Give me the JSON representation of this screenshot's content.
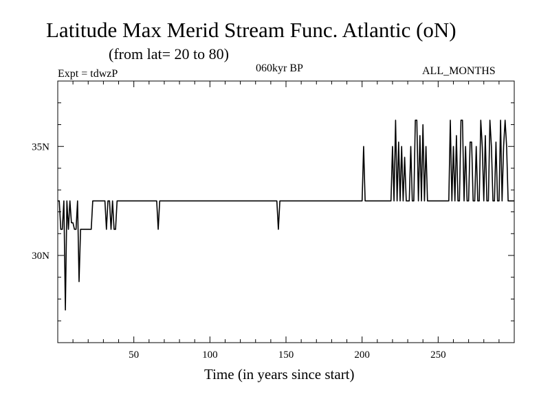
{
  "header": {
    "title": "Latitude Max Merid Stream Func. Atlantic (oN)",
    "subtitle": "(from lat= 20 to 80)",
    "experiment": "Expt = tdwzP",
    "period": "060kyr BP",
    "months": "ALL_MONTHS"
  },
  "chart_data": {
    "type": "line",
    "title": "Latitude Max Merid Stream Func. Atlantic (oN)",
    "subtitle": "(from lat= 20 to 80)",
    "xlabel": "Time (in years since start)",
    "ylabel": "",
    "xlim": [
      0,
      300
    ],
    "ylim": [
      26,
      38
    ],
    "x_ticks": [
      50,
      100,
      150,
      200,
      250
    ],
    "y_ticks": [
      {
        "value": 30,
        "label": "30N"
      },
      {
        "value": 35,
        "label": "35N"
      }
    ],
    "grid": false,
    "series": [
      {
        "points": [
          [
            0,
            32.5
          ],
          [
            1,
            32.5
          ],
          [
            2,
            31.2
          ],
          [
            3,
            31.2
          ],
          [
            4,
            32.5
          ],
          [
            5,
            27.5
          ],
          [
            6,
            32.5
          ],
          [
            7,
            31.2
          ],
          [
            8,
            32.5
          ],
          [
            9,
            31.5
          ],
          [
            10,
            31.5
          ],
          [
            11,
            31.2
          ],
          [
            12,
            31.2
          ],
          [
            13,
            32.5
          ],
          [
            14,
            28.8
          ],
          [
            15,
            31.2
          ],
          [
            16,
            31.2
          ],
          [
            20,
            31.2
          ],
          [
            22,
            31.2
          ],
          [
            23,
            32.5
          ],
          [
            30,
            32.5
          ],
          [
            31,
            32.5
          ],
          [
            32,
            31.2
          ],
          [
            33,
            32.5
          ],
          [
            34,
            32.5
          ],
          [
            35,
            31.2
          ],
          [
            36,
            32.5
          ],
          [
            37,
            31.2
          ],
          [
            38,
            31.2
          ],
          [
            39,
            32.5
          ],
          [
            65,
            32.5
          ],
          [
            66,
            31.2
          ],
          [
            67,
            32.5
          ],
          [
            144,
            32.5
          ],
          [
            145,
            31.2
          ],
          [
            146,
            32.5
          ],
          [
            200,
            32.5
          ],
          [
            201,
            35
          ],
          [
            202,
            32.5
          ],
          [
            219,
            32.5
          ],
          [
            220,
            35
          ],
          [
            221,
            32.5
          ],
          [
            222,
            36.2
          ],
          [
            223,
            32.5
          ],
          [
            224,
            35.2
          ],
          [
            225,
            32.5
          ],
          [
            226,
            35
          ],
          [
            227,
            32.5
          ],
          [
            228,
            34.5
          ],
          [
            229,
            32.5
          ],
          [
            231,
            32.5
          ],
          [
            232,
            35
          ],
          [
            233,
            32.5
          ],
          [
            234,
            32.5
          ],
          [
            235,
            36.2
          ],
          [
            236,
            36.2
          ],
          [
            237,
            32.5
          ],
          [
            238,
            35.5
          ],
          [
            239,
            32.5
          ],
          [
            240,
            36
          ],
          [
            241,
            32.5
          ],
          [
            242,
            35
          ],
          [
            243,
            32.5
          ],
          [
            257,
            32.5
          ],
          [
            258,
            36.2
          ],
          [
            259,
            32.5
          ],
          [
            260,
            35
          ],
          [
            261,
            32.5
          ],
          [
            262,
            35.5
          ],
          [
            263,
            32.5
          ],
          [
            264,
            32.5
          ],
          [
            265,
            36.2
          ],
          [
            266,
            36.2
          ],
          [
            267,
            32.5
          ],
          [
            268,
            35
          ],
          [
            269,
            32.5
          ],
          [
            270,
            32.5
          ],
          [
            271,
            35.2
          ],
          [
            272,
            35.2
          ],
          [
            273,
            32.5
          ],
          [
            274,
            32.5
          ],
          [
            275,
            35
          ],
          [
            276,
            32.5
          ],
          [
            277,
            32.5
          ],
          [
            278,
            36.2
          ],
          [
            279,
            35
          ],
          [
            280,
            32.5
          ],
          [
            281,
            35.5
          ],
          [
            282,
            32.5
          ],
          [
            283,
            32.5
          ],
          [
            284,
            36.2
          ],
          [
            285,
            35
          ],
          [
            286,
            32.5
          ],
          [
            287,
            32.5
          ],
          [
            288,
            35.2
          ],
          [
            289,
            32.5
          ],
          [
            290,
            32.5
          ],
          [
            291,
            36.2
          ],
          [
            292,
            32.5
          ],
          [
            293,
            35
          ],
          [
            294,
            36.2
          ],
          [
            295,
            35
          ],
          [
            296,
            32.5
          ],
          [
            297,
            32.5
          ],
          [
            298,
            32.5
          ],
          [
            299,
            32.5
          ],
          [
            300,
            32.5
          ]
        ]
      }
    ]
  }
}
